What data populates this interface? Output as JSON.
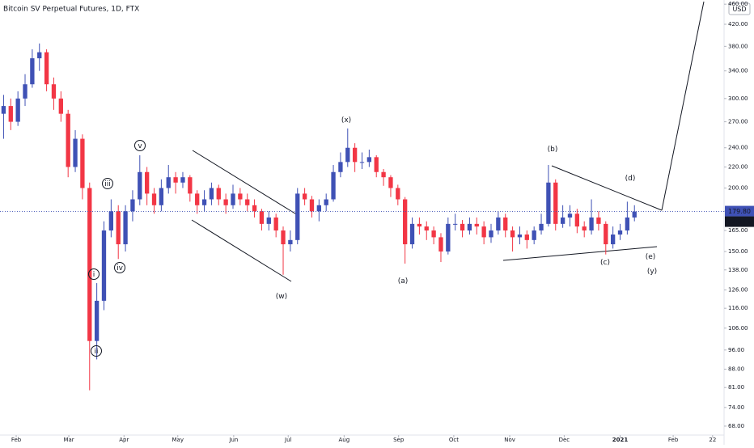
{
  "chart_data": {
    "type": "candlestick",
    "title": "Bitcoin SV Perpetual Futures, 1D, FTX",
    "currency": "USD",
    "log_scale": true,
    "up_color": "#3f51b5",
    "down_color": "#f23645",
    "ylim": [
      65.3,
      468.8
    ],
    "yticks": [
      {
        "value": 68,
        "label": "68.00"
      },
      {
        "value": 74,
        "label": "74.00"
      },
      {
        "value": 81,
        "label": "81.00"
      },
      {
        "value": 88,
        "label": "88.00"
      },
      {
        "value": 96,
        "label": "96.00"
      },
      {
        "value": 106,
        "label": "106.00"
      },
      {
        "value": 116,
        "label": "116.00"
      },
      {
        "value": 126,
        "label": "126.00"
      },
      {
        "value": 138,
        "label": "138.00"
      },
      {
        "value": 150,
        "label": "150.00"
      },
      {
        "value": 165,
        "label": "165.00"
      },
      {
        "value": 180,
        "label": "180.00"
      },
      {
        "value": 200,
        "label": "200.00"
      },
      {
        "value": 220,
        "label": "220.00"
      },
      {
        "value": 240,
        "label": "240.00"
      },
      {
        "value": 270,
        "label": "270.00"
      },
      {
        "value": 300,
        "label": "300.00"
      },
      {
        "value": 340,
        "label": "340.00"
      },
      {
        "value": 380,
        "label": "380.00"
      },
      {
        "value": 420,
        "label": "420.00"
      },
      {
        "value": 460,
        "label": "460.00"
      }
    ],
    "xlim": [
      -0.5,
      100.5
    ],
    "xticks": [
      {
        "value": 1.76,
        "label": "Feb"
      },
      {
        "value": 9.1,
        "label": "Mar"
      },
      {
        "value": 16.8,
        "label": "Apr"
      },
      {
        "value": 24.3,
        "label": "May"
      },
      {
        "value": 32.1,
        "label": "Jun"
      },
      {
        "value": 39.7,
        "label": "Jul"
      },
      {
        "value": 47.5,
        "label": "Aug"
      },
      {
        "value": 55.1,
        "label": "Sep"
      },
      {
        "value": 62.8,
        "label": "Oct"
      },
      {
        "value": 70.6,
        "label": "Nov"
      },
      {
        "value": 78.2,
        "label": "Dec"
      },
      {
        "value": 86,
        "label": "2021"
      },
      {
        "value": 93.4,
        "label": "Feb"
      },
      {
        "value": 98.9,
        "label": "22"
      }
    ],
    "last_price": {
      "value": 179.8,
      "label": "179.80"
    },
    "countdown": "02:07:09",
    "ohlc": [
      [
        280,
        305,
        250,
        290
      ],
      [
        290,
        300,
        260,
        270
      ],
      [
        270,
        310,
        265,
        300
      ],
      [
        300,
        335,
        290,
        320
      ],
      [
        320,
        375,
        315,
        360
      ],
      [
        360,
        385,
        340,
        370
      ],
      [
        370,
        375,
        310,
        320
      ],
      [
        320,
        330,
        285,
        300
      ],
      [
        300,
        310,
        270,
        280
      ],
      [
        280,
        285,
        210,
        220
      ],
      [
        220,
        260,
        215,
        250
      ],
      [
        250,
        255,
        190,
        200
      ],
      [
        200,
        205,
        80,
        100
      ],
      [
        100,
        130,
        92,
        120
      ],
      [
        120,
        172,
        115,
        165
      ],
      [
        165,
        190,
        160,
        180
      ],
      [
        180,
        185,
        145,
        155
      ],
      [
        155,
        185,
        150,
        180
      ],
      [
        180,
        198,
        172,
        190
      ],
      [
        190,
        232,
        185,
        215
      ],
      [
        215,
        220,
        185,
        195
      ],
      [
        195,
        200,
        178,
        185
      ],
      [
        185,
        208,
        180,
        200
      ],
      [
        200,
        222,
        195,
        210
      ],
      [
        210,
        215,
        195,
        205
      ],
      [
        205,
        215,
        200,
        210
      ],
      [
        210,
        212,
        188,
        195
      ],
      [
        195,
        198,
        178,
        185
      ],
      [
        185,
        198,
        180,
        190
      ],
      [
        190,
        205,
        185,
        200
      ],
      [
        200,
        203,
        185,
        190
      ],
      [
        190,
        195,
        178,
        185
      ],
      [
        185,
        203,
        182,
        195
      ],
      [
        195,
        200,
        185,
        190
      ],
      [
        190,
        195,
        180,
        185
      ],
      [
        185,
        190,
        175,
        180
      ],
      [
        180,
        182,
        165,
        170
      ],
      [
        170,
        180,
        165,
        175
      ],
      [
        175,
        178,
        160,
        165
      ],
      [
        165,
        168,
        135,
        155
      ],
      [
        155,
        165,
        150,
        158
      ],
      [
        158,
        200,
        155,
        195
      ],
      [
        195,
        200,
        185,
        190
      ],
      [
        190,
        193,
        175,
        180
      ],
      [
        180,
        190,
        172,
        185
      ],
      [
        185,
        195,
        180,
        190
      ],
      [
        190,
        222,
        188,
        215
      ],
      [
        215,
        235,
        210,
        225
      ],
      [
        225,
        262,
        220,
        240
      ],
      [
        240,
        245,
        215,
        225
      ],
      [
        225,
        235,
        218,
        225
      ],
      [
        225,
        238,
        220,
        230
      ],
      [
        230,
        232,
        210,
        215
      ],
      [
        215,
        218,
        202,
        210
      ],
      [
        210,
        212,
        192,
        200
      ],
      [
        200,
        203,
        185,
        190
      ],
      [
        190,
        192,
        142,
        155
      ],
      [
        155,
        175,
        152,
        170
      ],
      [
        170,
        175,
        162,
        168
      ],
      [
        168,
        172,
        158,
        165
      ],
      [
        165,
        168,
        155,
        160
      ],
      [
        160,
        163,
        143,
        150
      ],
      [
        150,
        175,
        148,
        170
      ],
      [
        170,
        178,
        165,
        170
      ],
      [
        170,
        173,
        160,
        165
      ],
      [
        165,
        175,
        162,
        170
      ],
      [
        170,
        175,
        162,
        168
      ],
      [
        168,
        172,
        155,
        160
      ],
      [
        160,
        170,
        156,
        165
      ],
      [
        165,
        180,
        162,
        175
      ],
      [
        175,
        178,
        160,
        165
      ],
      [
        165,
        168,
        150,
        160
      ],
      [
        160,
        168,
        155,
        162
      ],
      [
        162,
        165,
        152,
        158
      ],
      [
        158,
        168,
        155,
        165
      ],
      [
        165,
        178,
        162,
        170
      ],
      [
        170,
        222,
        168,
        205
      ],
      [
        205,
        208,
        165,
        170
      ],
      [
        170,
        185,
        167,
        175
      ],
      [
        175,
        185,
        168,
        178
      ],
      [
        178,
        182,
        163,
        168
      ],
      [
        168,
        172,
        160,
        165
      ],
      [
        165,
        190,
        162,
        175
      ],
      [
        175,
        180,
        165,
        170
      ],
      [
        170,
        172,
        148,
        155
      ],
      [
        155,
        168,
        152,
        162
      ],
      [
        162,
        170,
        158,
        165
      ],
      [
        165,
        188,
        162,
        175
      ],
      [
        175,
        185,
        172,
        179.8
      ]
    ],
    "annotations": [
      {
        "text": "v",
        "color": "#131722",
        "circled": true
      },
      {
        "text": "iii",
        "color": "#131722",
        "circled": true
      },
      {
        "text": "i",
        "color": "#131722",
        "circled": true
      },
      {
        "text": "iv",
        "color": "#131722",
        "circled": true
      },
      {
        "text": "ii",
        "color": "#131722",
        "circled": true
      },
      {
        "text": "(x)",
        "color": "#1a237e",
        "circled": false
      },
      {
        "text": "(w)",
        "color": "#1a237e",
        "circled": false
      },
      {
        "text": "(a)",
        "color": "#e53935",
        "circled": false
      },
      {
        "text": "(b)",
        "color": "#e53935",
        "circled": false
      },
      {
        "text": "(c)",
        "color": "#e53935",
        "circled": false
      },
      {
        "text": "(d)",
        "color": "#e53935",
        "circled": false
      },
      {
        "text": "(e)",
        "color": "#e53935",
        "circled": false
      },
      {
        "text": "(y)",
        "color": "#1a237e",
        "circled": false
      }
    ]
  }
}
